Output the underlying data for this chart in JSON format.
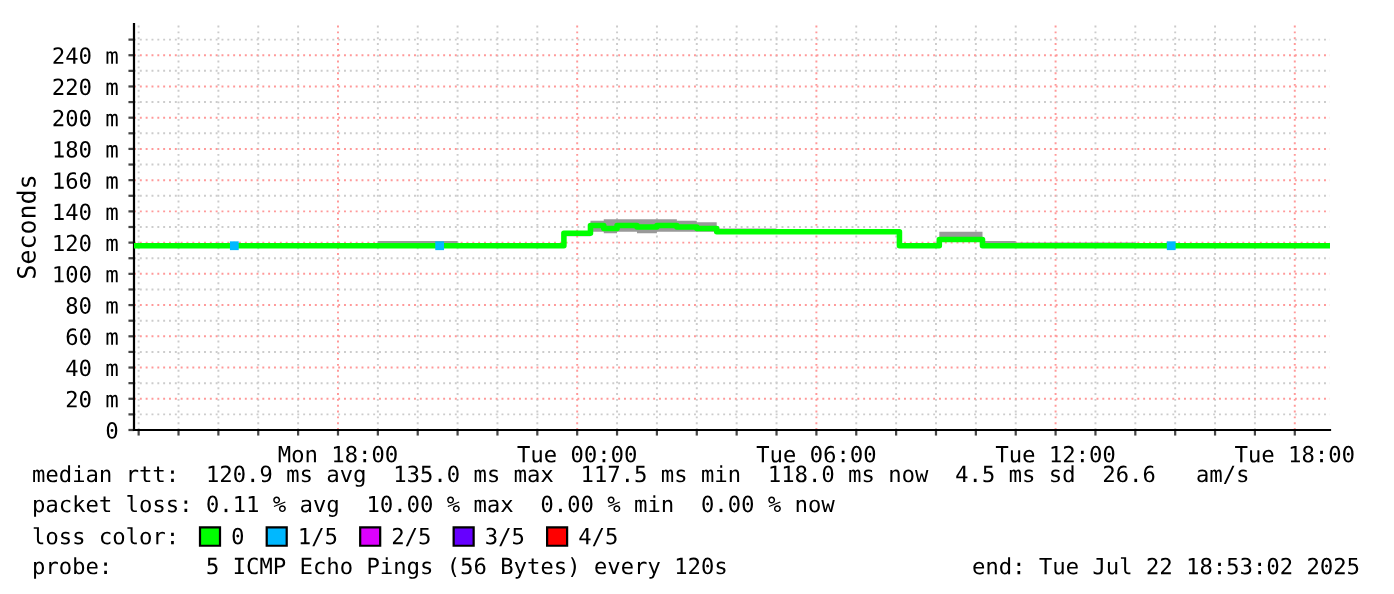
{
  "chart_data": {
    "type": "step",
    "ylabel": "Seconds",
    "x": [
      "2025-07-21T12:53",
      "2025-07-21T15:00",
      "2025-07-21T18:00",
      "2025-07-21T19:00",
      "2025-07-21T20:00",
      "2025-07-21T21:00",
      "2025-07-21T23:00",
      "2025-07-21T23:40",
      "2025-07-22T00:10",
      "2025-07-22T00:20",
      "2025-07-22T00:40",
      "2025-07-22T01:00",
      "2025-07-22T01:30",
      "2025-07-22T02:00",
      "2025-07-22T02:30",
      "2025-07-22T03:00",
      "2025-07-22T03:30",
      "2025-07-22T05:00",
      "2025-07-22T07:00",
      "2025-07-22T08:05",
      "2025-07-22T09:05",
      "2025-07-22T10:10",
      "2025-07-22T11:00",
      "2025-07-22T14:00",
      "2025-07-22T18:53"
    ],
    "series": [
      {
        "name": "0",
        "color": "#00ff00",
        "values": [
          118,
          118,
          118,
          118,
          118,
          118,
          118,
          126,
          126,
          131,
          129,
          131,
          130,
          131,
          130,
          129,
          127,
          127,
          127,
          118,
          122,
          118,
          118,
          118,
          118
        ],
        "lower": [
          117,
          117,
          117,
          117,
          117,
          117,
          117,
          124,
          124,
          127,
          126,
          127,
          126,
          127,
          127,
          127,
          126,
          126,
          126,
          117,
          121,
          117,
          117,
          117,
          117
        ],
        "upper": [
          119,
          119,
          119,
          121,
          121,
          119,
          119,
          127,
          127,
          134,
          135,
          135,
          135,
          135,
          134,
          133,
          129,
          128,
          128,
          119,
          127,
          121,
          120,
          119,
          119
        ]
      },
      {
        "name": "1/5",
        "color": "#00b8ff",
        "type": "scatter",
        "x": [
          "2025-07-21T15:24",
          "2025-07-21T20:33",
          "2025-07-22T14:54"
        ],
        "values": [
          118,
          118,
          118
        ]
      },
      {
        "name": "2/5",
        "color": "#dd00ff",
        "values": [
          null,
          null,
          null,
          null,
          null,
          null,
          null,
          null,
          null,
          null,
          null,
          null,
          null,
          null,
          null,
          null,
          null,
          null,
          null,
          null,
          null,
          null,
          null,
          null,
          null
        ]
      },
      {
        "name": "3/5",
        "color": "#6600ff",
        "values": [
          null,
          null,
          null,
          null,
          null,
          null,
          null,
          null,
          null,
          null,
          null,
          null,
          null,
          null,
          null,
          null,
          null,
          null,
          null,
          null,
          null,
          null,
          null,
          null,
          null
        ]
      },
      {
        "name": "4/5",
        "color": "#ff0000",
        "values": [
          null,
          null,
          null,
          null,
          null,
          null,
          null,
          null,
          null,
          null,
          null,
          null,
          null,
          null,
          null,
          null,
          null,
          null,
          null,
          null,
          null,
          null,
          null,
          null,
          null
        ]
      }
    ],
    "xlim": [
      "2025-07-21T12:53",
      "2025-07-22T18:53"
    ],
    "xticks": [
      {
        "value": "2025-07-21T13:00",
        "label": null
      },
      {
        "value": "2025-07-21T14:00",
        "label": null
      },
      {
        "value": "2025-07-21T15:00",
        "label": null
      },
      {
        "value": "2025-07-21T16:00",
        "label": null
      },
      {
        "value": "2025-07-21T17:00",
        "label": null
      },
      {
        "value": "2025-07-21T18:00",
        "label": "Mon 18:00"
      },
      {
        "value": "2025-07-21T19:00",
        "label": null
      },
      {
        "value": "2025-07-21T20:00",
        "label": null
      },
      {
        "value": "2025-07-21T21:00",
        "label": null
      },
      {
        "value": "2025-07-21T22:00",
        "label": null
      },
      {
        "value": "2025-07-21T23:00",
        "label": null
      },
      {
        "value": "2025-07-22T00:00",
        "label": "Tue 00:00"
      },
      {
        "value": "2025-07-22T01:00",
        "label": null
      },
      {
        "value": "2025-07-22T02:00",
        "label": null
      },
      {
        "value": "2025-07-22T03:00",
        "label": null
      },
      {
        "value": "2025-07-22T04:00",
        "label": null
      },
      {
        "value": "2025-07-22T05:00",
        "label": null
      },
      {
        "value": "2025-07-22T06:00",
        "label": "Tue 06:00"
      },
      {
        "value": "2025-07-22T07:00",
        "label": null
      },
      {
        "value": "2025-07-22T08:00",
        "label": null
      },
      {
        "value": "2025-07-22T09:00",
        "label": null
      },
      {
        "value": "2025-07-22T10:00",
        "label": null
      },
      {
        "value": "2025-07-22T11:00",
        "label": null
      },
      {
        "value": "2025-07-22T12:00",
        "label": "Tue 12:00"
      },
      {
        "value": "2025-07-22T13:00",
        "label": null
      },
      {
        "value": "2025-07-22T14:00",
        "label": null
      },
      {
        "value": "2025-07-22T15:00",
        "label": null
      },
      {
        "value": "2025-07-22T16:00",
        "label": null
      },
      {
        "value": "2025-07-22T17:00",
        "label": null
      },
      {
        "value": "2025-07-22T18:00",
        "label": "Tue 18:00"
      }
    ],
    "ylim": [
      0,
      260
    ],
    "yticks": [
      0,
      {
        "value": 10,
        "label": null
      },
      {
        "value": 20,
        "label": "20 m"
      },
      {
        "value": 30,
        "label": null
      },
      {
        "value": 40,
        "label": "40 m"
      },
      {
        "value": 50,
        "label": null
      },
      {
        "value": 60,
        "label": "60 m"
      },
      {
        "value": 70,
        "label": null
      },
      {
        "value": 80,
        "label": "80 m"
      },
      {
        "value": 90,
        "label": null
      },
      {
        "value": 100,
        "label": "100 m"
      },
      {
        "value": 110,
        "label": null
      },
      {
        "value": 120,
        "label": "120 m"
      },
      {
        "value": 130,
        "label": null
      },
      {
        "value": 140,
        "label": "140 m"
      },
      {
        "value": 150,
        "label": null
      },
      {
        "value": 160,
        "label": "160 m"
      },
      {
        "value": 170,
        "label": null
      },
      {
        "value": 180,
        "label": "180 m"
      },
      {
        "value": 190,
        "label": null
      },
      {
        "value": 200,
        "label": "200 m"
      },
      {
        "value": 210,
        "label": null
      },
      {
        "value": 220,
        "label": "220 m"
      },
      {
        "value": 230,
        "label": null
      },
      {
        "value": 240,
        "label": "240 m"
      },
      {
        "value": 250,
        "label": null
      }
    ],
    "grid": true,
    "legend": "bottom",
    "annotations": [
      "median rtt:  120.9 ms avg  135.0 ms max  117.5 ms min  118.0 ms now  4.5 ms sd  26.6   am/s",
      "packet loss: 0.11 % avg  10.00 % max  0.00 % min  0.00 % now",
      "loss color:",
      "probe:       5 ICMP Echo Pings (56 Bytes) every 120s",
      "end: Tue Jul 22 18:53:02 2025"
    ]
  }
}
